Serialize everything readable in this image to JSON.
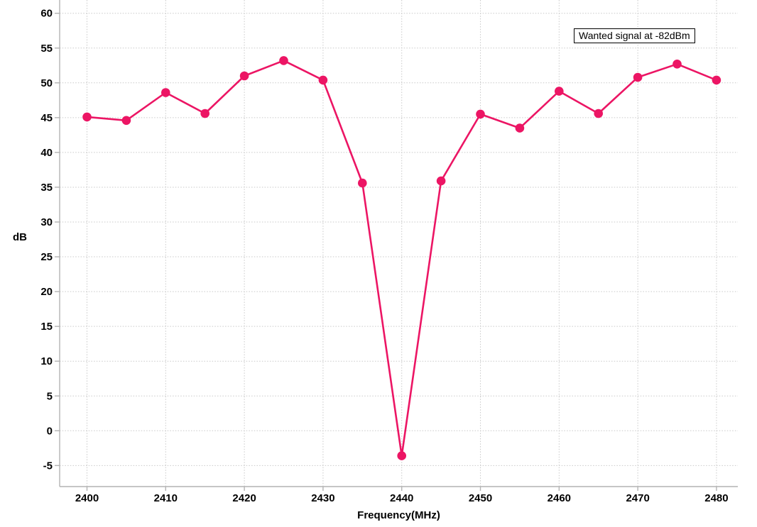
{
  "chart_data": {
    "type": "line",
    "title": "",
    "xlabel": "Frequency(MHz)",
    "ylabel": "dB",
    "annotation": "Wanted signal at -82dBm",
    "x": [
      2400,
      2405,
      2410,
      2415,
      2420,
      2425,
      2430,
      2435,
      2440,
      2445,
      2450,
      2455,
      2460,
      2465,
      2470,
      2475,
      2480
    ],
    "y": [
      45.1,
      44.6,
      48.6,
      45.6,
      51.0,
      53.2,
      50.4,
      35.6,
      -3.6,
      35.9,
      45.5,
      43.5,
      48.8,
      45.6,
      50.8,
      52.7,
      50.4
    ],
    "x_ticks": [
      2400,
      2410,
      2420,
      2430,
      2440,
      2450,
      2460,
      2470,
      2480
    ],
    "y_ticks": [
      60,
      55,
      50,
      45,
      40,
      35,
      30,
      25,
      20,
      15,
      10,
      5,
      0,
      -5
    ],
    "xlim": [
      2396.5,
      2482.7
    ],
    "ylim": [
      -8.0,
      61.9
    ],
    "grid": true,
    "legend_position": "none",
    "marker": "circle",
    "colors": {
      "series": "#EC1564",
      "grid": "#c9c9c9",
      "axis": "#b3b3b3",
      "text": "#000000",
      "background": "#ffffff"
    }
  }
}
